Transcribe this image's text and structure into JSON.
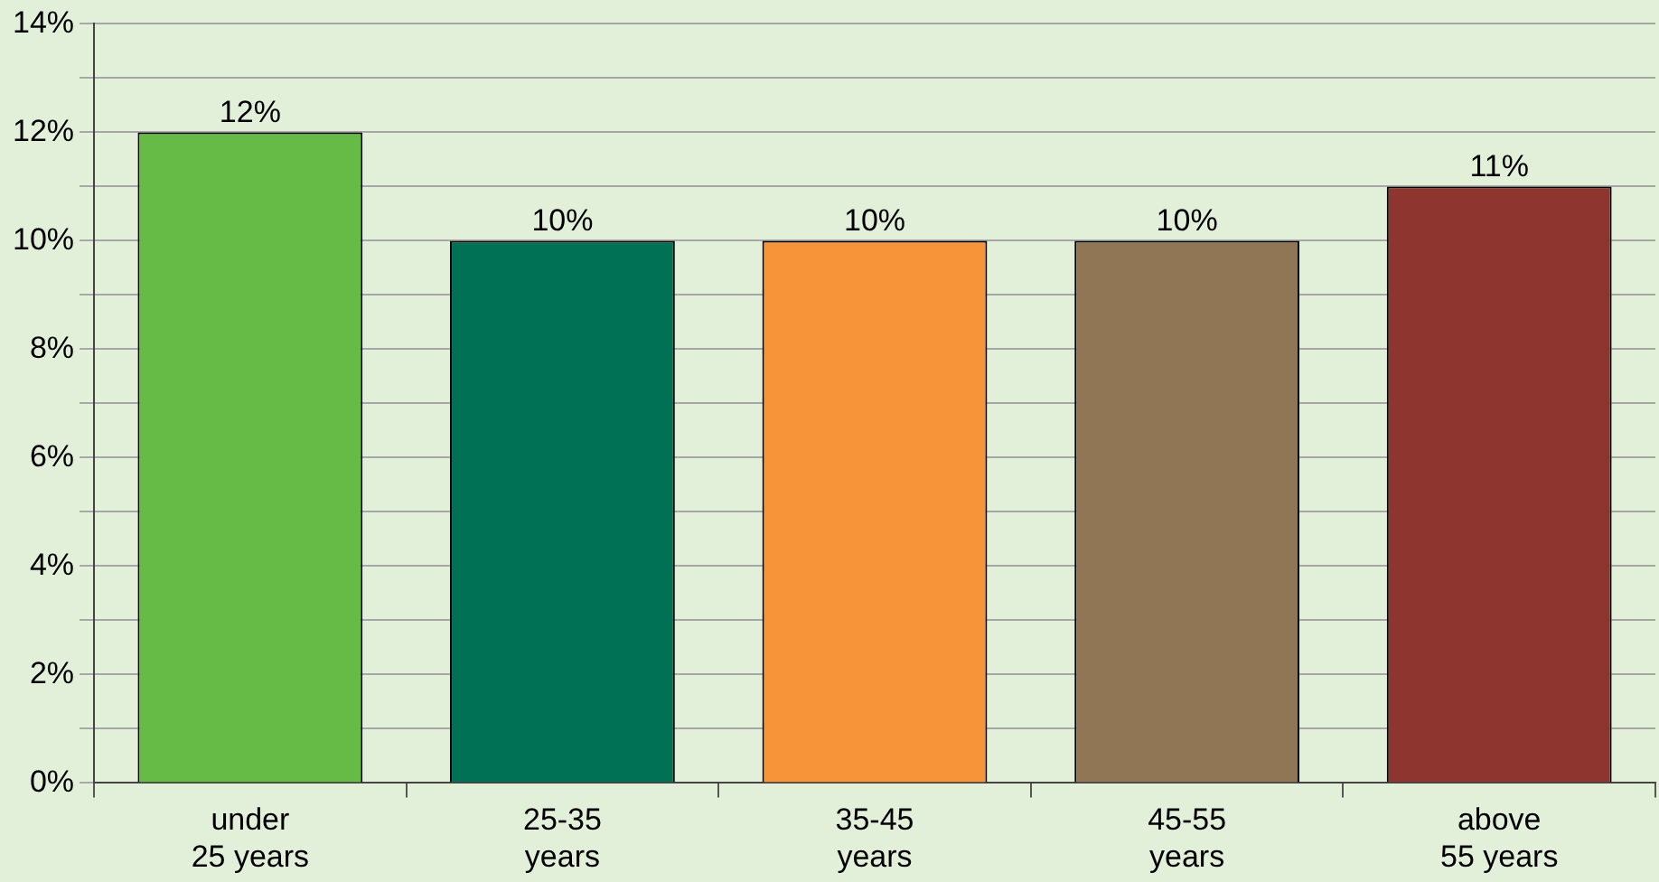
{
  "chart_data": {
    "type": "bar",
    "categories": [
      "under 25 years",
      "25-35 years",
      "35-45 years",
      "45-55 years",
      "above 55 years"
    ],
    "values": [
      12,
      10,
      10,
      10,
      11
    ],
    "colors": [
      "#66bb46",
      "#007155",
      "#f7943a",
      "#917656",
      "#8e3530"
    ],
    "value_labels": [
      "12%",
      "10%",
      "10%",
      "10%",
      "11%"
    ],
    "ylim": [
      0,
      14
    ],
    "yticks": [
      {
        "value": 0,
        "label": "0%"
      },
      {
        "value": 1,
        "label": null
      },
      {
        "value": 2,
        "label": "2%"
      },
      {
        "value": 3,
        "label": null
      },
      {
        "value": 4,
        "label": "4%"
      },
      {
        "value": 5,
        "label": null
      },
      {
        "value": 6,
        "label": "6%"
      },
      {
        "value": 7,
        "label": null
      },
      {
        "value": 8,
        "label": "8%"
      },
      {
        "value": 9,
        "label": null
      },
      {
        "value": 10,
        "label": "10%"
      },
      {
        "value": 11,
        "label": null
      },
      {
        "value": 12,
        "label": "12%"
      },
      {
        "value": 13,
        "label": null
      },
      {
        "value": 14,
        "label": "14%"
      }
    ],
    "grid": "y"
  }
}
